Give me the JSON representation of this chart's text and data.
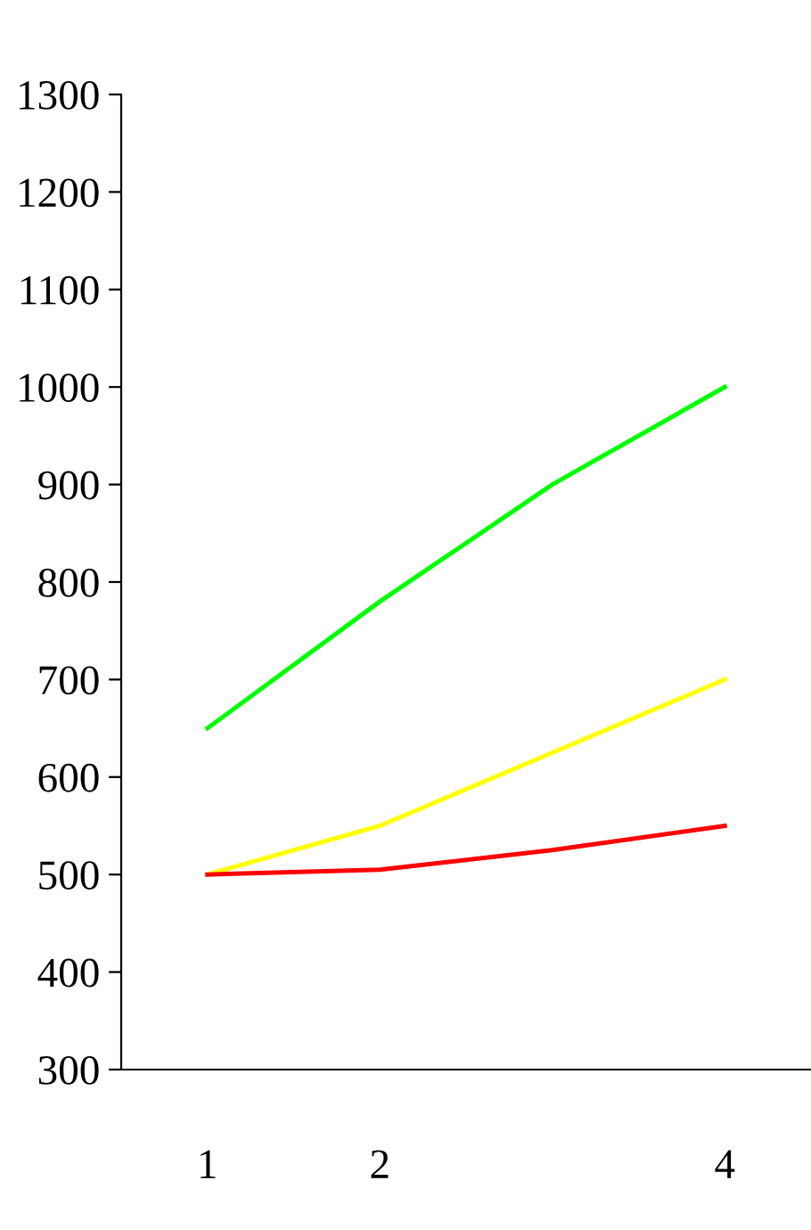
{
  "chart_data": {
    "type": "line",
    "x": [
      1,
      2,
      3,
      4
    ],
    "series": [
      {
        "color": "#00ff00",
        "values": [
          650,
          780,
          900,
          1000
        ]
      },
      {
        "color": "#ffff00",
        "values": [
          500,
          550,
          625,
          700
        ]
      },
      {
        "color": "#ff0000",
        "values": [
          500,
          505,
          525,
          550
        ]
      }
    ],
    "xlim": [
      0.5,
      4.5
    ],
    "xticks": [
      1,
      2,
      4
    ],
    "ylim": [
      300,
      1300
    ],
    "yticks": [
      300,
      400,
      500,
      600,
      700,
      800,
      900,
      1000,
      1100,
      1200,
      1300
    ],
    "grid": false,
    "legend": false,
    "marker": "none",
    "line_style": "solid"
  }
}
